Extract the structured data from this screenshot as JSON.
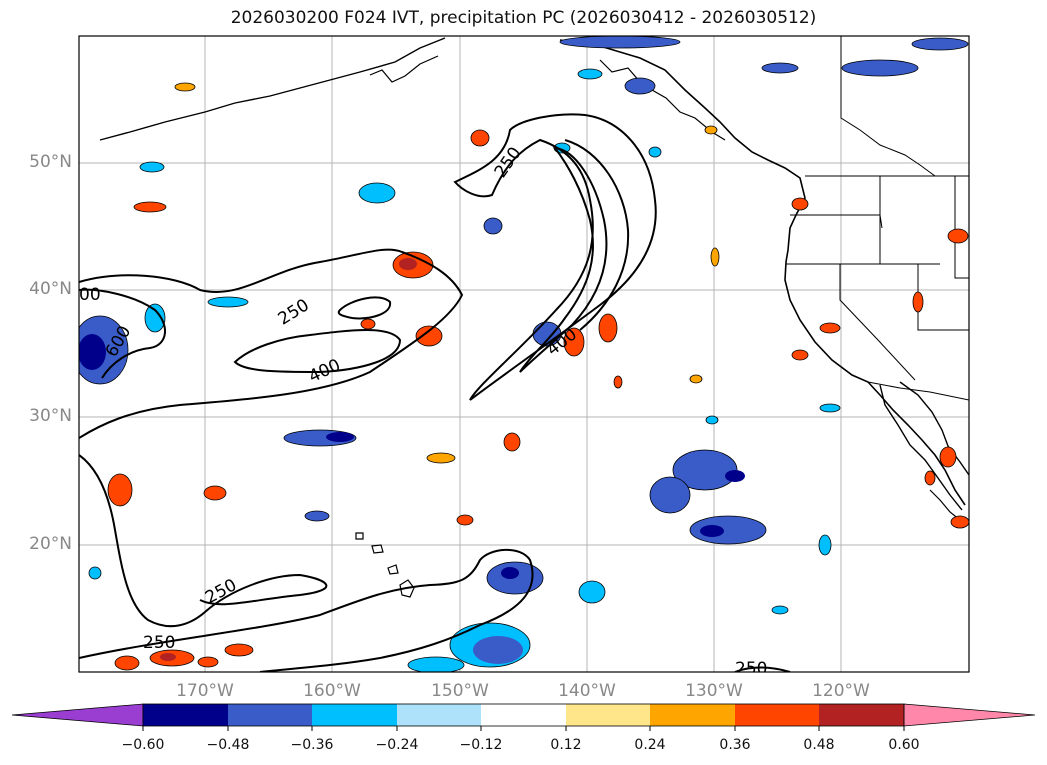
{
  "title": "2026030200 F024 IVT, precipitation PC (2026030412 - 2026030512)",
  "axes": {
    "lat_labels": [
      "50°N",
      "40°N",
      "30°N",
      "20°N"
    ],
    "lon_labels": [
      "170°W",
      "160°W",
      "150°W",
      "140°W",
      "130°W",
      "120°W"
    ]
  },
  "ivt_contours": {
    "levels": [
      "250",
      "400"
    ],
    "labels": [
      "250",
      "250",
      "400",
      "400",
      "250",
      "250",
      "250",
      "00",
      "600"
    ]
  },
  "colorbar": {
    "ticks": [
      "−0.60",
      "−0.48",
      "−0.36",
      "−0.24",
      "−0.12",
      "0.12",
      "0.24",
      "0.36",
      "0.48",
      "0.60"
    ],
    "colors": [
      "#9a3dd1",
      "#00008b",
      "#3a5cc9",
      "#00bfff",
      "#aee2fa",
      "#ffffff",
      "#ffe68a",
      "#ffa500",
      "#ff4500",
      "#b22222",
      "#ff88aa"
    ]
  },
  "precip_pc": {
    "negative_colors": [
      "#aee2fa",
      "#00bfff",
      "#3a5cc9",
      "#00008b"
    ],
    "positive_colors": [
      "#ffe68a",
      "#ffa500",
      "#ff4500",
      "#b22222"
    ]
  }
}
